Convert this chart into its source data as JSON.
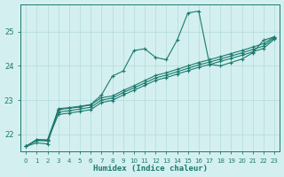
{
  "xlabel": "Humidex (Indice chaleur)",
  "x": [
    0,
    1,
    2,
    3,
    4,
    5,
    6,
    7,
    8,
    9,
    10,
    11,
    12,
    13,
    14,
    15,
    16,
    17,
    18,
    19,
    20,
    21,
    22,
    23
  ],
  "line_volatile": [
    21.65,
    21.75,
    21.72,
    22.75,
    22.78,
    22.82,
    22.87,
    23.15,
    23.7,
    23.85,
    24.45,
    24.5,
    24.25,
    24.18,
    24.75,
    25.55,
    25.6,
    24.05,
    24.0,
    24.1,
    24.2,
    24.38,
    24.75,
    24.85
  ],
  "line_a": [
    21.65,
    21.85,
    21.84,
    22.72,
    22.76,
    22.8,
    22.86,
    23.07,
    23.12,
    23.28,
    23.42,
    23.57,
    23.72,
    23.8,
    23.9,
    24.0,
    24.1,
    24.18,
    24.27,
    24.36,
    24.45,
    24.55,
    24.65,
    24.85
  ],
  "line_b": [
    21.65,
    21.83,
    21.82,
    22.65,
    22.69,
    22.74,
    22.79,
    23.0,
    23.06,
    23.22,
    23.36,
    23.5,
    23.65,
    23.73,
    23.83,
    23.93,
    24.03,
    24.11,
    24.2,
    24.29,
    24.38,
    24.48,
    24.58,
    24.82
  ],
  "line_c": [
    21.65,
    21.82,
    21.81,
    22.58,
    22.62,
    22.67,
    22.72,
    22.93,
    22.99,
    23.15,
    23.29,
    23.43,
    23.58,
    23.66,
    23.76,
    23.86,
    23.96,
    24.04,
    24.13,
    24.22,
    24.31,
    24.41,
    24.51,
    24.78
  ],
  "line_color": "#1a7a6e",
  "bg_color": "#d4efef",
  "grid_color": "#c8e8e8",
  "ylim": [
    21.5,
    25.8
  ],
  "xlim": [
    -0.5,
    23.5
  ],
  "yticks": [
    22,
    23,
    24,
    25
  ],
  "xticks": [
    0,
    1,
    2,
    3,
    4,
    5,
    6,
    7,
    8,
    9,
    10,
    11,
    12,
    13,
    14,
    15,
    16,
    17,
    18,
    19,
    20,
    21,
    22,
    23
  ]
}
